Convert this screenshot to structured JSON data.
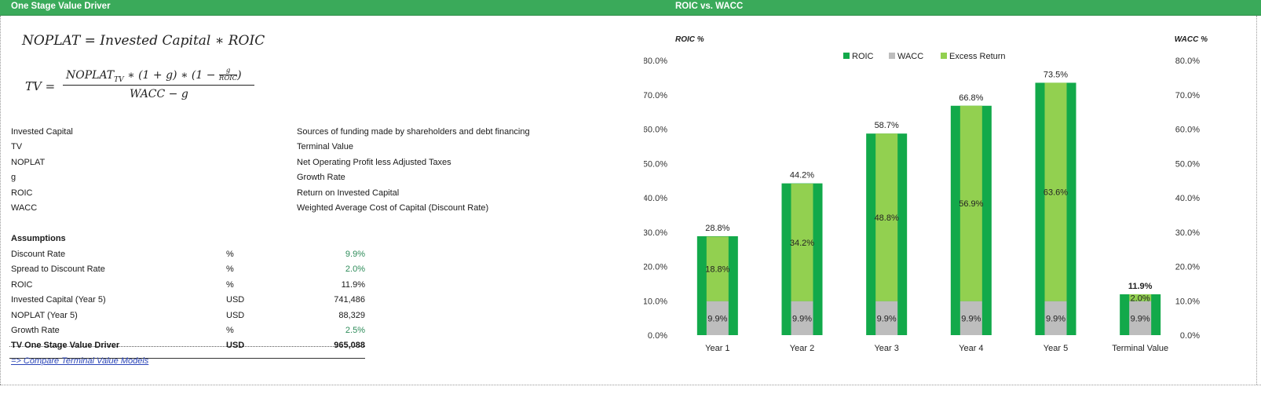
{
  "header": {
    "left_title": "One Stage Value Driver",
    "right_title": "ROIC vs. WACC"
  },
  "formulas": {
    "noplat_lhs": "NOPLAT = Invested Capital ∗ ROIC",
    "tv_lhs": "TV =",
    "tv_num_a": "NOPLAT",
    "tv_num_sub": "TV",
    "tv_num_b": " ∗ (1 + g) ∗ (1 − ",
    "tv_num_frac_n": "g",
    "tv_num_frac_d": "ROIC",
    "tv_num_c": ")",
    "tv_den": "WACC − g"
  },
  "definitions": [
    {
      "term": "Invested Capital",
      "description": "Sources of funding made by shareholders and debt financing"
    },
    {
      "term": "TV",
      "description": "Terminal Value"
    },
    {
      "term": "NOPLAT",
      "description": "Net Operating Profit less Adjusted Taxes"
    },
    {
      "term": "g",
      "description": "Growth Rate"
    },
    {
      "term": "ROIC",
      "description": "Return on Invested Capital"
    },
    {
      "term": "WACC",
      "description": "Weighted Average Cost of Capital (Discount Rate)"
    }
  ],
  "assumptions": {
    "heading": "Assumptions",
    "rows": [
      {
        "label": "Discount Rate",
        "unit": "%",
        "value": "9.9%",
        "input": true
      },
      {
        "label": "Spread to Discount Rate",
        "unit": "%",
        "value": "2.0%",
        "input": true
      },
      {
        "label": "ROIC",
        "unit": "%",
        "value": "11.9%",
        "input": false
      },
      {
        "label": "Invested Capital (Year 5)",
        "unit": "USD",
        "value": "741,486",
        "input": false
      },
      {
        "label": "NOPLAT (Year 5)",
        "unit": "USD",
        "value": "88,329",
        "input": false
      },
      {
        "label": "Growth Rate",
        "unit": "%",
        "value": "2.5%",
        "input": true
      }
    ],
    "total": {
      "label": "TV One Stage Value Driver",
      "unit": "USD",
      "value": "965,088"
    }
  },
  "link_text": "=> Compare Terminal Value Models",
  "colors": {
    "header": "#3aaa5a",
    "roic": "#12a94a",
    "wacc": "#bdbdbd",
    "excess": "#92d050",
    "input_value": "#2e8c5a"
  },
  "chart_data": {
    "type": "bar",
    "title": "ROIC vs. WACC",
    "ylabel_left": "ROIC %",
    "ylabel_right": "WACC %",
    "categories": [
      "Year 1",
      "Year 2",
      "Year 3",
      "Year 4",
      "Year 5",
      "Terminal Value"
    ],
    "series": [
      {
        "name": "ROIC",
        "values": [
          28.8,
          44.2,
          58.7,
          66.8,
          73.5,
          11.9
        ]
      },
      {
        "name": "WACC",
        "values": [
          9.9,
          9.9,
          9.9,
          9.9,
          9.9,
          9.9
        ]
      },
      {
        "name": "Excess Return",
        "values": [
          18.8,
          34.2,
          48.8,
          56.9,
          63.6,
          2.0
        ]
      }
    ],
    "roic_labels": [
      "28.8%",
      "44.2%",
      "58.7%",
      "66.8%",
      "73.5%",
      "11.9%"
    ],
    "wacc_labels": [
      "9.9%",
      "9.9%",
      "9.9%",
      "9.9%",
      "9.9%",
      "9.9%"
    ],
    "excess_labels": [
      "18.8%",
      "34.2%",
      "48.8%",
      "56.9%",
      "63.6%",
      "2.0%"
    ],
    "y_ticks": [
      "0.0%",
      "10.0%",
      "20.0%",
      "30.0%",
      "40.0%",
      "50.0%",
      "60.0%",
      "70.0%",
      "80.0%"
    ],
    "ylim": [
      0,
      80
    ],
    "legend_position": "top-center",
    "grid": false
  }
}
